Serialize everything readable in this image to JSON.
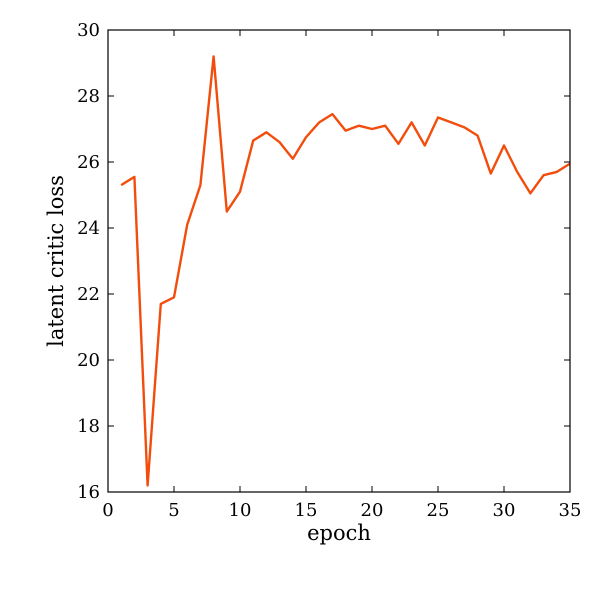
{
  "chart_data": {
    "type": "line",
    "xlabel": "epoch",
    "ylabel": "latent critic loss",
    "xlim": [
      0,
      35
    ],
    "ylim": [
      16,
      30
    ],
    "xticks": [
      0,
      5,
      10,
      15,
      20,
      25,
      30,
      35
    ],
    "yticks": [
      16,
      18,
      20,
      22,
      24,
      26,
      28,
      30
    ],
    "grid": false,
    "series": [
      {
        "color": "#f24d0c",
        "x": [
          1,
          2,
          3,
          4,
          5,
          6,
          7,
          8,
          9,
          10,
          11,
          12,
          13,
          14,
          15,
          16,
          17,
          18,
          19,
          20,
          21,
          22,
          23,
          24,
          25,
          26,
          27,
          28,
          29,
          30,
          31,
          32,
          33,
          34,
          35
        ],
        "y": [
          25.3,
          25.55,
          16.2,
          21.7,
          21.9,
          24.1,
          25.3,
          29.2,
          24.5,
          25.1,
          26.65,
          26.9,
          26.6,
          26.1,
          26.75,
          27.2,
          27.45,
          26.95,
          27.1,
          27.0,
          27.1,
          26.55,
          27.2,
          26.5,
          27.35,
          27.2,
          27.05,
          26.8,
          25.65,
          26.5,
          25.7,
          25.05,
          25.6,
          25.7,
          25.95
        ]
      }
    ]
  }
}
